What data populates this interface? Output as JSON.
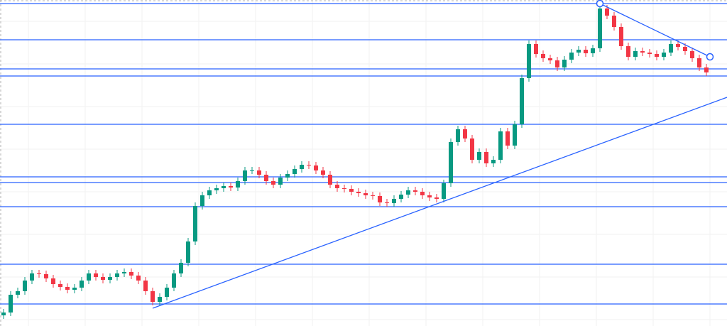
{
  "chart_data": {
    "type": "candlestick",
    "up_color": "#089981",
    "down_color": "#f23645",
    "line_color": "#2962ff",
    "ylim": [
      0,
      459
    ],
    "xlim": [
      -0.5,
      101.9
    ],
    "open": [
      15,
      19,
      44,
      49,
      64,
      74,
      73,
      67,
      59,
      55,
      51,
      54,
      64,
      74,
      69,
      65,
      69,
      74,
      76,
      71,
      64,
      49,
      34,
      41,
      54,
      74,
      89,
      119,
      169,
      184,
      191,
      194,
      197,
      195,
      204,
      219,
      219,
      213,
      204,
      199,
      209,
      214,
      221,
      227,
      226,
      219,
      213,
      199,
      194,
      193,
      189,
      187,
      184,
      183,
      174,
      173,
      179,
      185,
      191,
      189,
      184,
      181,
      179,
      201,
      259,
      277,
      264,
      234,
      245,
      229,
      234,
      274,
      254,
      284,
      349,
      397,
      383,
      377,
      374,
      364,
      375,
      385,
      389,
      384,
      391,
      447,
      437,
      421,
      394,
      379,
      387,
      385,
      383,
      379,
      385,
      397,
      393,
      387,
      377,
      364
    ],
    "high": [
      24,
      49,
      54,
      69,
      79,
      79,
      78,
      72,
      64,
      60,
      59,
      69,
      79,
      79,
      74,
      74,
      79,
      81,
      81,
      76,
      69,
      54,
      46,
      59,
      79,
      94,
      124,
      174,
      189,
      196,
      199,
      202,
      202,
      209,
      224,
      224,
      224,
      218,
      209,
      214,
      219,
      226,
      232,
      232,
      231,
      224,
      218,
      204,
      199,
      198,
      194,
      192,
      189,
      188,
      179,
      184,
      190,
      196,
      196,
      194,
      189,
      186,
      206,
      264,
      282,
      282,
      269,
      250,
      250,
      239,
      279,
      279,
      289,
      354,
      402,
      402,
      388,
      382,
      379,
      380,
      390,
      394,
      394,
      396,
      452,
      452,
      442,
      426,
      399,
      392,
      392,
      390,
      388,
      390,
      402,
      402,
      398,
      392,
      382,
      369
    ],
    "low": [
      10,
      14,
      39,
      44,
      59,
      68,
      62,
      54,
      50,
      46,
      46,
      49,
      59,
      64,
      60,
      60,
      64,
      69,
      66,
      59,
      44,
      29,
      29,
      36,
      49,
      69,
      84,
      114,
      164,
      179,
      186,
      189,
      190,
      190,
      199,
      214,
      208,
      199,
      194,
      194,
      204,
      209,
      216,
      221,
      214,
      208,
      194,
      189,
      188,
      184,
      182,
      179,
      178,
      169,
      168,
      168,
      174,
      180,
      184,
      179,
      176,
      174,
      174,
      196,
      254,
      259,
      229,
      229,
      224,
      224,
      229,
      249,
      249,
      279,
      344,
      378,
      372,
      369,
      359,
      359,
      370,
      380,
      379,
      379,
      386,
      432,
      416,
      389,
      374,
      374,
      380,
      378,
      374,
      374,
      380,
      388,
      382,
      372,
      359,
      352
    ],
    "close": [
      19,
      44,
      49,
      64,
      74,
      73,
      67,
      59,
      55,
      51,
      54,
      64,
      74,
      69,
      65,
      69,
      74,
      76,
      71,
      64,
      49,
      34,
      41,
      54,
      74,
      89,
      119,
      169,
      184,
      191,
      194,
      197,
      195,
      204,
      219,
      219,
      213,
      204,
      199,
      209,
      214,
      221,
      227,
      226,
      219,
      213,
      199,
      194,
      193,
      189,
      187,
      184,
      183,
      174,
      173,
      179,
      185,
      191,
      189,
      184,
      181,
      179,
      201,
      259,
      277,
      264,
      234,
      245,
      229,
      234,
      274,
      254,
      284,
      349,
      397,
      383,
      377,
      374,
      364,
      375,
      385,
      389,
      384,
      391,
      447,
      437,
      421,
      394,
      379,
      387,
      385,
      383,
      379,
      385,
      397,
      393,
      387,
      377,
      364,
      357
    ],
    "levels": [
      454,
      403,
      362,
      352,
      284,
      210,
      202,
      168,
      87,
      31
    ],
    "trendlines": [
      {
        "x": [
          21,
          101.9
        ],
        "y": [
          25,
          322
        ]
      },
      {
        "x": [
          84,
          99.5
        ],
        "y": [
          454,
          379
        ]
      }
    ]
  }
}
